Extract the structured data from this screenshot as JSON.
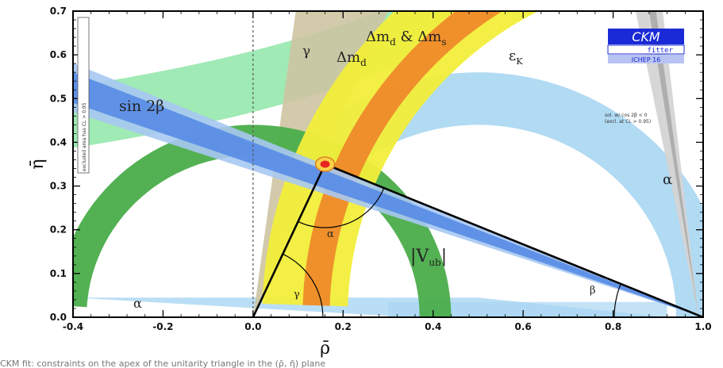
{
  "chart_data": {
    "type": "area",
    "title": "",
    "xlabel": "ρ̄",
    "ylabel": "η̄",
    "xlim": [
      -0.4,
      1.0
    ],
    "ylim": [
      0.0,
      0.7
    ],
    "x_ticks": [
      "-0.4",
      "-0.2",
      "0.0",
      "0.2",
      "0.4",
      "0.6",
      "0.8",
      "1.0"
    ],
    "y_ticks": [
      "0.0",
      "0.1",
      "0.2",
      "0.3",
      "0.4",
      "0.5",
      "0.6",
      "0.7"
    ],
    "grid": false,
    "apex": {
      "x": 0.16,
      "y": 0.35
    },
    "triangle": [
      {
        "x": 0.0,
        "y": 0.0
      },
      {
        "x": 1.0,
        "y": 0.0
      },
      {
        "x": 0.16,
        "y": 0.35
      }
    ],
    "constraints": [
      {
        "name": "sin 2β",
        "color": "#5b8ee6"
      },
      {
        "name": "α",
        "color": "#a9d6f2"
      },
      {
        "name": "γ",
        "color": "#cdc4a2"
      },
      {
        "name": "Δm_d",
        "color": "#f2ee3a"
      },
      {
        "name": "Δm_d & Δm_s",
        "color": "#ee8a2a"
      },
      {
        "name": "ε_K",
        "color": "#8fe6a8"
      },
      {
        "name": "|V_ub|",
        "color": "#4aad4a"
      }
    ],
    "labels": {
      "sin2beta": "sin 2β",
      "gamma_band": "γ",
      "dmd": "Δm",
      "dmd_sub": "d",
      "dms": "Δm",
      "dms_sub": "d",
      "dms_amp": " & Δm",
      "dms_sub2": "s",
      "epsk": "ε",
      "epsk_sub": "K",
      "vub_left": "|V",
      "vub_sub": "ub",
      "vub_right": "|",
      "alpha_right": "α",
      "alpha_bottom": "α",
      "alpha_angle": "α",
      "gamma_angle": "γ",
      "beta_angle": "β",
      "excluded_note": "excluded area has CL > 0.95",
      "sol_note_1": "sol. w/ cos 2β < 0",
      "sol_note_2": "(excl. at CL > 0.95)"
    },
    "logo": {
      "main": "CKM",
      "sub": "fitter",
      "conf": "ICHEP 16"
    }
  },
  "caption": "CKM fit: constraints on the apex of the unitarity triangle in the (ρ̄, η̄) plane"
}
